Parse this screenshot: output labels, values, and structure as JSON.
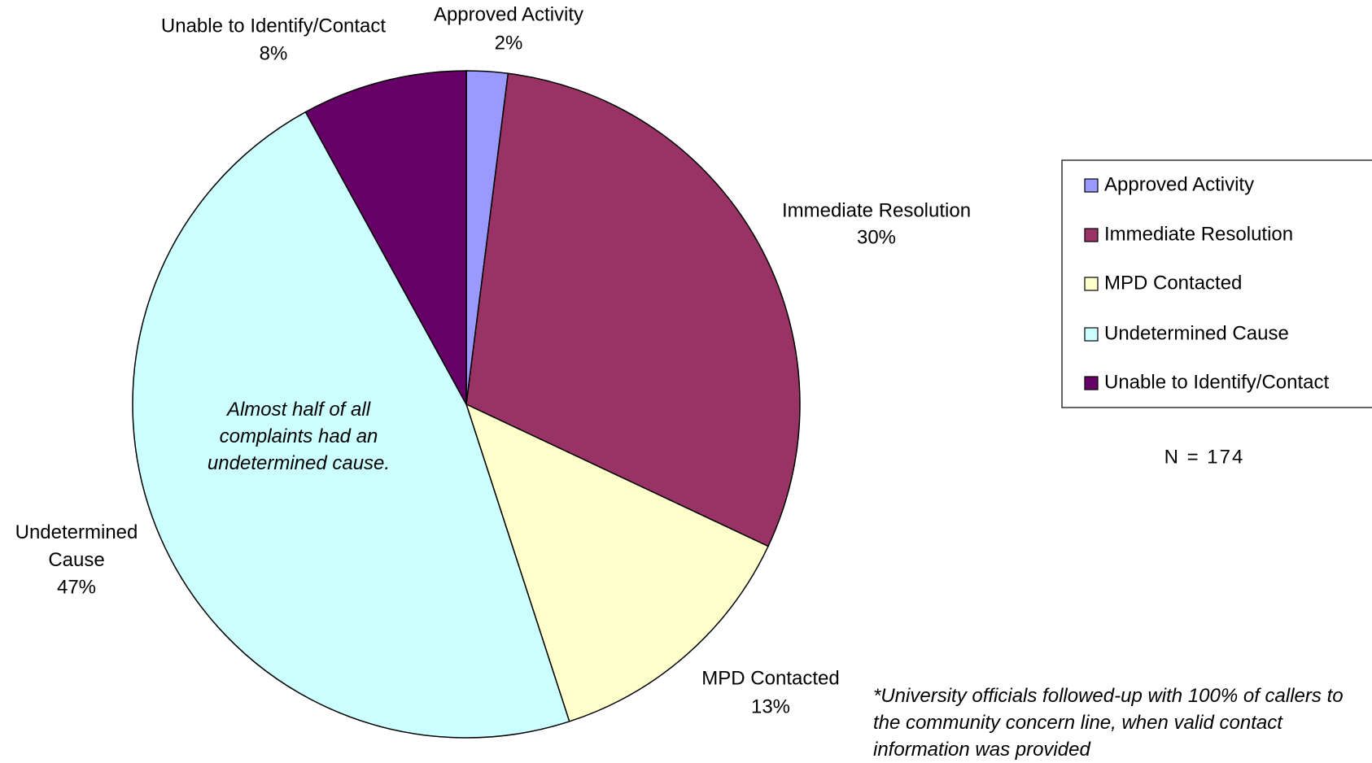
{
  "chart_data": {
    "type": "pie",
    "categories": [
      "Approved Activity",
      "Immediate Resolution",
      "MPD Contacted",
      "Undetermined Cause",
      "Unable to Identify/Contact"
    ],
    "values": [
      2,
      30,
      13,
      47,
      8
    ],
    "value_labels": [
      "2%",
      "30%",
      "13%",
      "47%",
      "8%"
    ],
    "colors": [
      "#9999ff",
      "#993366",
      "#ffffcc",
      "#ccffff",
      "#660066"
    ],
    "legend": "right",
    "annotations": [
      "Almost half of all complaints had an undetermined cause.",
      "N = 174",
      "*University officials followed-up with 100% of callers to the community concern line, when valid contact information was provided"
    ]
  }
}
